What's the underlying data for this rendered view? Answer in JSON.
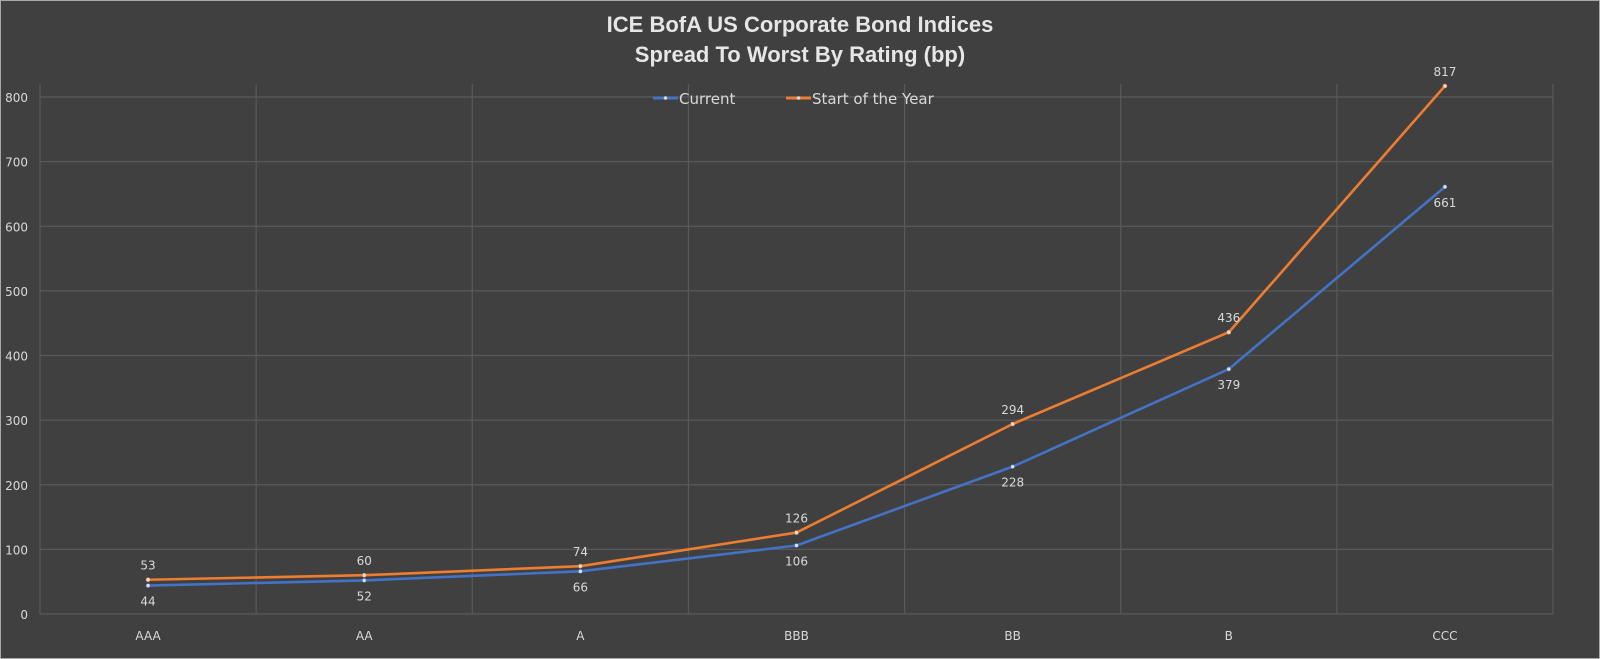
{
  "chart_data": {
    "type": "line",
    "title": "ICE BofA US Corporate Bond Indices",
    "subtitle": "Spread To Worst By Rating (bp)",
    "xlabel": "",
    "ylabel": "",
    "categories": [
      "AAA",
      "AA",
      "A",
      "BBB",
      "BB",
      "B",
      "CCC"
    ],
    "series": [
      {
        "name": "Current",
        "color": "#4472c4",
        "values": [
          44,
          52,
          66,
          106,
          228,
          379,
          661
        ],
        "label_position": "below"
      },
      {
        "name": "Start of the Year",
        "color": "#ed7d31",
        "values": [
          53,
          60,
          74,
          126,
          294,
          436,
          817
        ],
        "label_position": "above"
      }
    ],
    "ylim": [
      0,
      800
    ],
    "yticks": [
      0,
      100,
      200,
      300,
      400,
      500,
      600,
      700,
      800
    ],
    "grid": true,
    "legend_position": "top-center"
  },
  "colors": {
    "background": "#404040",
    "gridline": "#595959",
    "text": "#d9d9d9"
  }
}
